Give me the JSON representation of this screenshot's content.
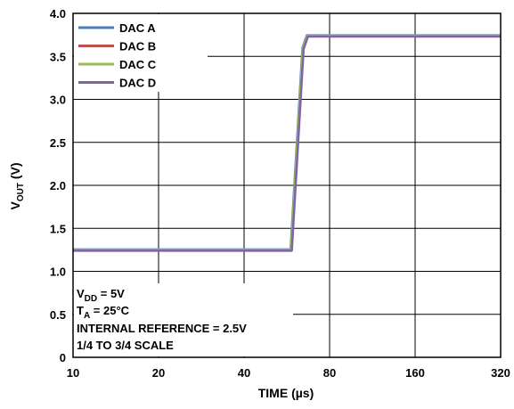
{
  "chart_data": {
    "type": "line",
    "title": "",
    "xlabel": "TIME (µs)",
    "ylabel": "V_OUT (V)",
    "x_scale": "log2",
    "xlim": [
      10,
      320
    ],
    "ylim": [
      0,
      4.0
    ],
    "x_ticks": [
      10,
      20,
      40,
      80,
      160,
      320
    ],
    "x_tick_labels": [
      "10",
      "20",
      "40",
      "80",
      "160",
      "320"
    ],
    "y_ticks": [
      0,
      0.5,
      1.0,
      1.5,
      2.0,
      2.5,
      3.0,
      3.5,
      4.0
    ],
    "y_tick_labels": [
      "0",
      "0.5",
      "1.0",
      "1.5",
      "2.0",
      "2.5",
      "3.0",
      "3.5",
      "4.0"
    ],
    "grid": true,
    "legend_position": "top-left",
    "series": [
      {
        "name": "DAC A",
        "color": "#4a7ebb",
        "x": [
          10,
          58.3,
          64.2,
          66.5,
          320
        ],
        "y": [
          1.255,
          1.255,
          3.6,
          3.745,
          3.745
        ]
      },
      {
        "name": "DAC B",
        "color": "#c0504d",
        "x": [
          10,
          58.7,
          64.6,
          66.9,
          320
        ],
        "y": [
          1.245,
          1.245,
          3.59,
          3.735,
          3.735
        ]
      },
      {
        "name": "DAC C",
        "color": "#9bbb59",
        "x": [
          10,
          58.5,
          64.4,
          66.7,
          320
        ],
        "y": [
          1.25,
          1.25,
          3.595,
          3.74,
          3.74
        ]
      },
      {
        "name": "DAC D",
        "color": "#8064a2",
        "x": [
          10,
          58.9,
          64.8,
          67.1,
          320
        ],
        "y": [
          1.24,
          1.24,
          3.585,
          3.73,
          3.73
        ]
      }
    ],
    "annotations": {
      "vdd": {
        "main": "V",
        "sub": "DD",
        "rest": " = 5V"
      },
      "ta": {
        "main": "T",
        "sub": "A",
        "rest": " = 25°C"
      },
      "reference": "INTERNAL REFERENCE = 2.5V",
      "scale": "1/4 TO 3/4 SCALE"
    },
    "ylabel_parts": {
      "main": "V",
      "sub": "OUT",
      "rest": " (V)"
    }
  }
}
